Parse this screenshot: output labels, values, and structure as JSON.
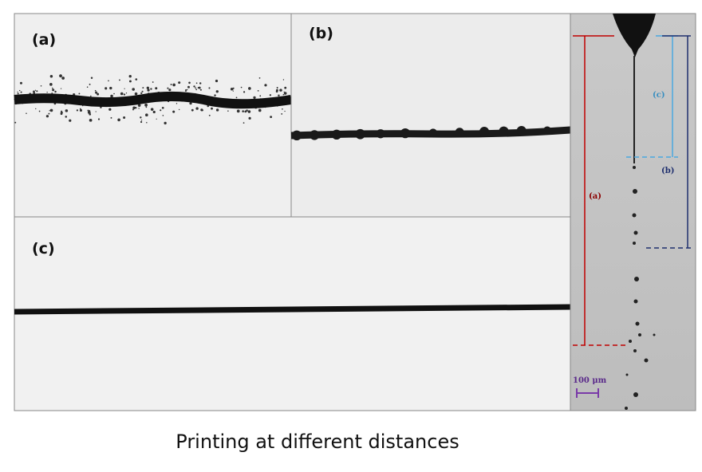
{
  "panels": [
    {
      "label": "(a)"
    },
    {
      "label": "(b)"
    },
    {
      "label": "(c)"
    }
  ],
  "jet_panel": {
    "brackets": [
      {
        "label": "(a)"
      },
      {
        "label": "(b)"
      },
      {
        "label": "(c)"
      }
    ],
    "scale_bar": "100 μm"
  },
  "caption": "Printing at different distances"
}
